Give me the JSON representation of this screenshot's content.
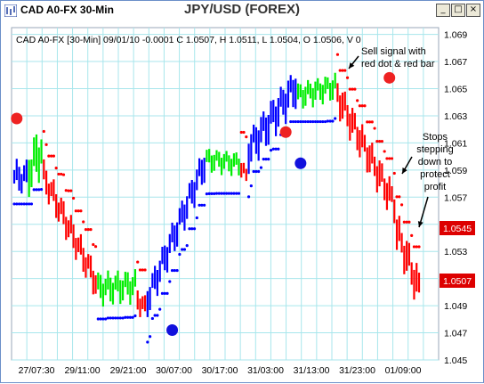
{
  "window": {
    "title": "CAD A0-FX 30-Min",
    "app_title": "JPY/USD (FOREX)",
    "buttons": {
      "minimize": "_",
      "maximize": "□",
      "close": "×"
    }
  },
  "info_line": "CAD A0-FX [30-Min] 09/01/10  -0.0001 C 1.0507, H 1.0511, L 1.0504, O 1.0506, V 0",
  "colors": {
    "up": "#0000ff",
    "down": "#ff0000",
    "neutral": "#00ee00",
    "grid": "#a8e6ec",
    "signal_red": "#ee2222",
    "signal_blue": "#1111dd",
    "price_box": "#dd0000"
  },
  "chart_data": {
    "type": "bar",
    "y_axis": {
      "ylim": [
        1.045,
        1.0695
      ],
      "ticks": [
        1.045,
        1.047,
        1.049,
        1.051,
        1.053,
        1.055,
        1.057,
        1.059,
        1.061,
        1.063,
        1.065,
        1.067,
        1.069
      ]
    },
    "x_axis": {
      "tick_labels": [
        "27/07:30",
        "29/11:00",
        "29/21:00",
        "30/07:00",
        "30/17:00",
        "31/03:00",
        "31/13:00",
        "31/23:00",
        "01/09:00"
      ]
    },
    "price_boxes": [
      "1.0545",
      "1.0507"
    ],
    "annotations": [
      {
        "text": [
          "Sell signal with",
          "red dot & red bar"
        ]
      },
      {
        "text": [
          "Stops",
          "stepping",
          "down to",
          "protect",
          "profit"
        ]
      }
    ],
    "segments": [
      {
        "color": "blue",
        "bars": 6,
        "from": 1.0585,
        "to": 1.0585,
        "range": 0.0022
      },
      {
        "color": "green",
        "bars": 6,
        "from": 1.059,
        "to": 1.0605,
        "range": 0.0035
      },
      {
        "color": "red",
        "bars": 22,
        "from": 1.0585,
        "to": 1.0508,
        "range": 0.0022
      },
      {
        "color": "green",
        "bars": 16,
        "from": 1.0503,
        "to": 1.0505,
        "range": 0.0022
      },
      {
        "color": "red",
        "bars": 4,
        "from": 1.0495,
        "to": 1.0488,
        "range": 0.0018
      },
      {
        "color": "blue",
        "bars": 24,
        "from": 1.0495,
        "to": 1.0595,
        "range": 0.0024
      },
      {
        "color": "green",
        "bars": 14,
        "from": 1.0598,
        "to": 1.0595,
        "range": 0.0016
      },
      {
        "color": "red",
        "bars": 3,
        "from": 1.0592,
        "to": 1.0585,
        "range": 0.0014
      },
      {
        "color": "blue",
        "bars": 20,
        "from": 1.0605,
        "to": 1.0652,
        "range": 0.0028
      },
      {
        "color": "green",
        "bars": 16,
        "from": 1.0645,
        "to": 1.0652,
        "range": 0.0018
      },
      {
        "color": "red",
        "bars": 24,
        "from": 1.0645,
        "to": 1.0565,
        "range": 0.0025
      },
      {
        "color": "red",
        "bars": 10,
        "from": 1.0545,
        "to": 1.0502,
        "range": 0.0028
      }
    ],
    "signal_dots": [
      {
        "color": "red",
        "index": 1,
        "value": 1.0628
      },
      {
        "color": "blue",
        "index": 64,
        "value": 1.0472
      },
      {
        "color": "red",
        "index": 110,
        "value": 1.0618
      },
      {
        "color": "blue",
        "index": 116,
        "value": 1.0595
      },
      {
        "color": "red",
        "index": 152,
        "value": 1.0658
      }
    ]
  }
}
